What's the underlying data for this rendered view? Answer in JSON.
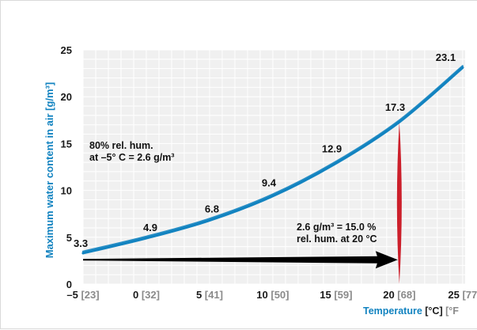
{
  "chart_data": {
    "type": "line",
    "title": "",
    "ylabel": "Maximum water content in air [g/m³]",
    "xlabel": {
      "main": "Temperature",
      "unit_c": "[°C]",
      "unit_f": "[°F"
    },
    "xlim": [
      -5,
      25.2
    ],
    "ylim": [
      0,
      25
    ],
    "grid": true,
    "x_ticks": [
      {
        "c": "–5",
        "f": "[23]"
      },
      {
        "c": "0",
        "f": "[32]"
      },
      {
        "c": "5",
        "f": "[41]"
      },
      {
        "c": "10",
        "f": "[50]"
      },
      {
        "c": "15",
        "f": "[59]"
      },
      {
        "c": "20",
        "f": "[68]"
      },
      {
        "c": "25",
        "f": "[77"
      }
    ],
    "x_tick_values": [
      -5,
      0,
      5,
      10,
      15,
      20,
      25
    ],
    "y_ticks": [
      0,
      5,
      10,
      15,
      20,
      25
    ],
    "series": [
      {
        "color": "#1283c0",
        "points": [
          {
            "x": -5,
            "y": 3.3,
            "label": "3.3"
          },
          {
            "x": 0,
            "y": 4.9,
            "label": "4.9"
          },
          {
            "x": 5,
            "y": 6.8,
            "label": "6.8"
          },
          {
            "x": 10,
            "y": 9.4,
            "label": "9.4"
          },
          {
            "x": 15,
            "y": 12.9,
            "label": "12.9"
          },
          {
            "x": 20,
            "y": 17.3,
            "label": "17.3"
          },
          {
            "x": 25,
            "y": 23.1,
            "label": "23.1"
          }
        ]
      }
    ],
    "annotations": [
      {
        "lines": [
          "80% rel. hum.",
          "at –5° C = 2.6 g/m³"
        ]
      },
      {
        "lines": [
          "2.6 g/m³ = 15.0 %",
          "rel. hum. at 20 °C"
        ]
      }
    ],
    "arrow": {
      "from_x": -5,
      "to_x": 20,
      "y": 2.6,
      "color": "#000000"
    },
    "red_marker": {
      "x": 20,
      "y_top": 17.3,
      "y_bottom": 0,
      "color": "#cc1f2b"
    }
  }
}
